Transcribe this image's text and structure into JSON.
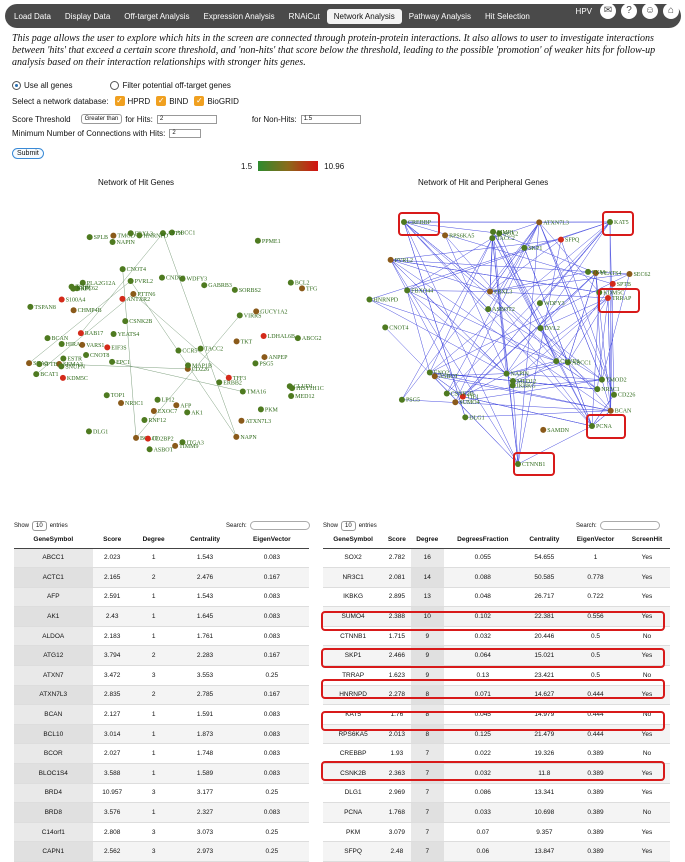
{
  "nav": {
    "tabs": [
      "Load Data",
      "Display Data",
      "Off-target Analysis",
      "Expression Analysis",
      "RNAiCut",
      "Network Analysis",
      "Pathway Analysis",
      "Hit Selection"
    ],
    "active": 5,
    "right_label": "HPV"
  },
  "intro": "This page allows the user to explore which hits in the screen are connected through protein-protein interactions. It also allows to user to investigate interactions between 'hits' that exceed a certain score threshold, and 'non-hits' that score below the threshold, leading to the possible 'promotion' of weaker hits for follow-up analysis based on their interaction relationships with stronger hits genes.",
  "form": {
    "use_all": "Use all genes",
    "filter_off": "Filter potential off-target genes",
    "db_label": "Select a network database:",
    "dbs": [
      "HPRD",
      "BIND",
      "BioGRID"
    ],
    "score_label": "Score Threshold",
    "score_select": "Greater than",
    "for_hits": "for Hits:",
    "hits_value": "2",
    "for_nonhits": "for Non-Hits:",
    "nonhits_value": "1.5",
    "min_conn_label": "Minimum Number of Connections with Hits:",
    "min_conn_value": "2",
    "submit": "Submit"
  },
  "legend": {
    "min": "1.5",
    "max": "10.96"
  },
  "networks": {
    "left_title": "Network of Hit Genes",
    "right_title": "Network of Hit and Peripheral Genes"
  },
  "left_nodes": [
    "BCAN",
    "TFF3",
    "SEMA3",
    "CLUD1",
    "SEC62",
    "BCL10",
    "PTTN6",
    "RAB17",
    "PVRL2",
    "S100A4",
    "CD226",
    "TFG",
    "TMA16",
    "VIRRS",
    "KDM5C",
    "CNOT4",
    "NAPN",
    "CNOT8",
    "CHMP4B",
    "ATXN7L3",
    "TOP1",
    "HIST1H1C",
    "TIMM9",
    "VARS1",
    "PLA2G12A",
    "ABCC1",
    "ERBB2",
    "EIF3S",
    "ANPEP",
    "NAPIN",
    "GUCY1A2",
    "SNUPN",
    "BCAT1",
    "ESTR",
    "LP12",
    "CNDP2",
    "CD2BP2",
    "PPME1",
    "BCL2",
    "ASTN",
    "CSNK2B",
    "NR3C1",
    "AK1",
    "TMOD",
    "ASBOT",
    "LDHAL6B",
    "SKP1",
    "MED12",
    "SCA3",
    "TSHR",
    "PKM",
    "SORBS2",
    "TKT",
    "FBXL3",
    "SPLB",
    "ITGA3",
    "MAP1B",
    "TACC2",
    "TSPAN8",
    "GABRB3",
    "YEATS4",
    "RNF12",
    "PSG5",
    "AFP",
    "WDFY3",
    "CCR5",
    "ANTXR2",
    "EPC1",
    "HIRA",
    "ABCG2",
    "SPTB",
    "DLG1",
    "HNRNPD",
    "EXOC7"
  ],
  "right_nodes": [
    "CREBBP",
    "TACC2",
    "YEATS4",
    "KAT5",
    "BCAN",
    "NAPIN",
    "ENO2",
    "ATXN7L3",
    "CD226",
    "TRRAP",
    "FBXL3",
    "PCNA",
    "CTNNB1",
    "TIE1",
    "PVRL2",
    "ABCC1",
    "TMOD2",
    "CLUD1",
    "SEC62",
    "PSG5",
    "KDM5C",
    "CNOT4",
    "FBXO44",
    "ASBOT",
    "SAMDN",
    "DVL2",
    "WDFY3",
    "SUMO4",
    "SPTB",
    "ASBOT2",
    "MED12",
    "SOX2",
    "NR3C1",
    "IKBKG",
    "SKP1",
    "HNRNPD",
    "RPS6KA5",
    "CSNK2B",
    "DLG1",
    "PKM",
    "SFPQ",
    "MMP1"
  ],
  "left_table": {
    "show_label": "Show",
    "entries_label": "entries",
    "show_value": "10",
    "search_label": "Search:",
    "columns": [
      "GeneSymbol",
      "Score",
      "Degree",
      "Centrality",
      "EigenVector"
    ],
    "rows": [
      [
        "ABCC1",
        "2.023",
        "1",
        "1.543",
        "0.083"
      ],
      [
        "ACTC1",
        "2.165",
        "2",
        "2.476",
        "0.167"
      ],
      [
        "AFP",
        "2.591",
        "1",
        "1.543",
        "0.083"
      ],
      [
        "AK1",
        "2.43",
        "1",
        "1.645",
        "0.083"
      ],
      [
        "ALDOA",
        "2.183",
        "1",
        "1.761",
        "0.083"
      ],
      [
        "ATG12",
        "3.794",
        "2",
        "2.283",
        "0.167"
      ],
      [
        "ATXN7",
        "3.472",
        "3",
        "3.553",
        "0.25"
      ],
      [
        "ATXN7L3",
        "2.835",
        "2",
        "2.785",
        "0.167"
      ],
      [
        "BCAN",
        "2.127",
        "1",
        "1.591",
        "0.083"
      ],
      [
        "BCL10",
        "3.014",
        "1",
        "1.873",
        "0.083"
      ],
      [
        "BCOR",
        "2.027",
        "1",
        "1.748",
        "0.083"
      ],
      [
        "BLOC1S4",
        "3.588",
        "1",
        "1.589",
        "0.083"
      ],
      [
        "BRD4",
        "10.957",
        "3",
        "3.177",
        "0.25"
      ],
      [
        "BRD8",
        "3.576",
        "1",
        "2.327",
        "0.083"
      ],
      [
        "C14orf1",
        "2.808",
        "3",
        "3.073",
        "0.25"
      ],
      [
        "CAPN1",
        "2.562",
        "3",
        "2.973",
        "0.25"
      ]
    ]
  },
  "right_table": {
    "show_label": "Show",
    "entries_label": "entries",
    "show_value": "10",
    "search_label": "Search:",
    "columns": [
      "GeneSymbol",
      "Score",
      "Degree",
      "DegreesFraction",
      "Centrality",
      "EigenVector",
      "ScreenHit"
    ],
    "rows": [
      [
        "SOX2",
        "2.782",
        "16",
        "0.055",
        "54.655",
        "1",
        "Yes"
      ],
      [
        "NR3C1",
        "2.081",
        "14",
        "0.088",
        "50.585",
        "0.778",
        "Yes"
      ],
      [
        "IKBKG",
        "2.895",
        "13",
        "0.048",
        "26.717",
        "0.722",
        "Yes"
      ],
      [
        "SUMO4",
        "2.388",
        "10",
        "0.102",
        "22.381",
        "0.556",
        "Yes"
      ],
      [
        "CTNNB1",
        "1.715",
        "9",
        "0.032",
        "20.446",
        "0.5",
        "No"
      ],
      [
        "SKP1",
        "2.466",
        "9",
        "0.064",
        "15.021",
        "0.5",
        "Yes"
      ],
      [
        "TRRAP",
        "1.623",
        "9",
        "0.13",
        "23.421",
        "0.5",
        "No"
      ],
      [
        "HNRNPD",
        "2.278",
        "8",
        "0.071",
        "14.627",
        "0.444",
        "Yes"
      ],
      [
        "KAT5",
        "1.76",
        "8",
        "0.045",
        "14.979",
        "0.444",
        "No"
      ],
      [
        "RPS6KA5",
        "2.013",
        "8",
        "0.125",
        "21.479",
        "0.444",
        "Yes"
      ],
      [
        "CREBBP",
        "1.93",
        "7",
        "0.022",
        "19.326",
        "0.389",
        "No"
      ],
      [
        "CSNK2B",
        "2.363",
        "7",
        "0.032",
        "11.8",
        "0.389",
        "Yes"
      ],
      [
        "DLG1",
        "2.969",
        "7",
        "0.086",
        "13.341",
        "0.389",
        "Yes"
      ],
      [
        "PCNA",
        "1.768",
        "7",
        "0.033",
        "10.698",
        "0.389",
        "No"
      ],
      [
        "PKM",
        "3.079",
        "7",
        "0.07",
        "9.357",
        "0.389",
        "Yes"
      ],
      [
        "SFPQ",
        "2.48",
        "7",
        "0.06",
        "13.847",
        "0.389",
        "Yes"
      ]
    ]
  }
}
